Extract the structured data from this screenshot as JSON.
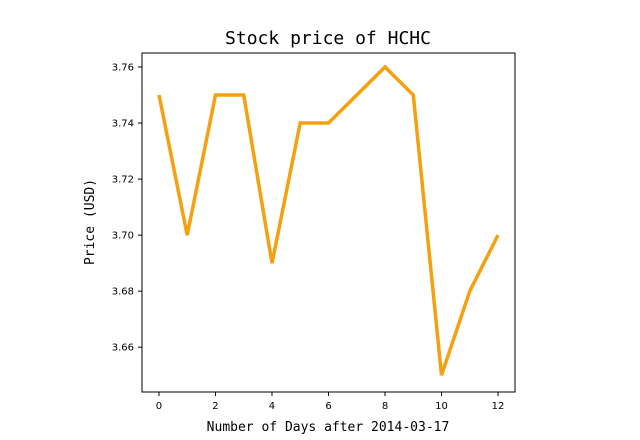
{
  "chart_data": {
    "type": "line",
    "title": "Stock price of HCHC",
    "xlabel": "Number of Days after 2014-03-17",
    "ylabel": "Price (USD)",
    "xlim": [
      -0.6,
      12.6
    ],
    "ylim": [
      3.644,
      3.765
    ],
    "xticks": [
      0,
      2,
      4,
      6,
      8,
      10,
      12
    ],
    "yticks": [
      3.66,
      3.68,
      3.7,
      3.72,
      3.74,
      3.76
    ],
    "ytick_labels": [
      "3.66",
      "3.68",
      "3.70",
      "3.72",
      "3.74",
      "3.76"
    ],
    "grid": false,
    "series": [
      {
        "color": "#f5a00f",
        "x": [
          0,
          1,
          2,
          3,
          4,
          5,
          6,
          7,
          8,
          9,
          10,
          11,
          12
        ],
        "y": [
          3.75,
          3.7,
          3.75,
          3.75,
          3.69,
          3.74,
          3.74,
          3.75,
          3.76,
          3.75,
          3.65,
          3.68,
          3.7
        ]
      }
    ]
  }
}
